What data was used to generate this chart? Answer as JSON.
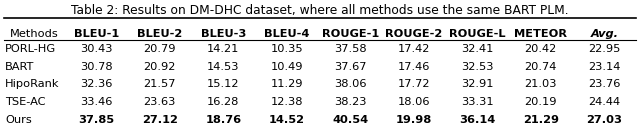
{
  "title": "Table 2: Results on DM-DHC dataset, where all methods use the same BART PLM.",
  "columns": [
    "Methods",
    "BLEU-1",
    "BLEU-2",
    "BLEU-3",
    "BLEU-4",
    "ROUGE-1",
    "ROUGE-2",
    "ROUGE-L",
    "METEOR",
    "Avg."
  ],
  "rows": [
    [
      "PORL-HG",
      "30.43",
      "20.79",
      "14.21",
      "10.35",
      "37.58",
      "17.42",
      "32.41",
      "20.42",
      "22.95"
    ],
    [
      "BART",
      "30.78",
      "20.92",
      "14.53",
      "10.49",
      "37.67",
      "17.46",
      "32.53",
      "20.74",
      "23.14"
    ],
    [
      "HipoRank",
      "32.36",
      "21.57",
      "15.12",
      "11.29",
      "38.06",
      "17.72",
      "32.91",
      "21.03",
      "23.76"
    ],
    [
      "TSE-AC",
      "33.46",
      "23.63",
      "16.28",
      "12.38",
      "38.23",
      "18.06",
      "33.31",
      "20.19",
      "24.44"
    ],
    [
      "Ours",
      "37.85",
      "27.12",
      "18.76",
      "14.52",
      "40.54",
      "19.98",
      "36.14",
      "21.29",
      "27.03"
    ]
  ],
  "bold_row": 4,
  "bg_color": "#ffffff",
  "header_fontsize": 8.2,
  "cell_fontsize": 8.2,
  "title_fontsize": 8.8
}
